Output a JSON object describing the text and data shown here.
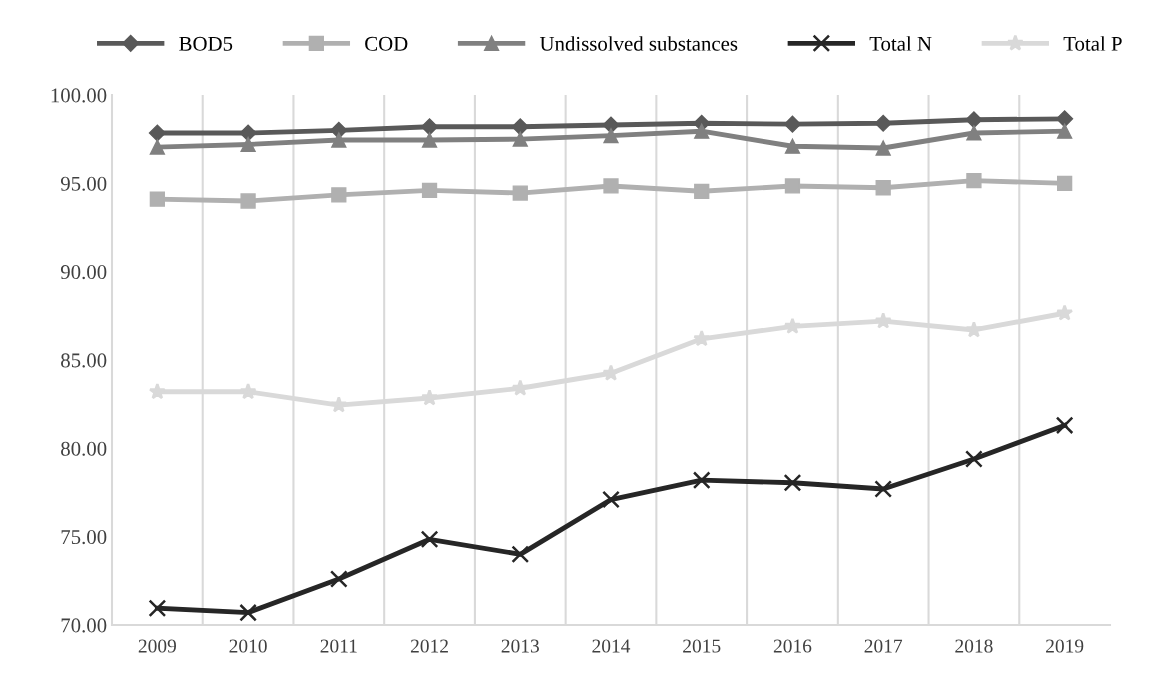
{
  "chart_data": {
    "type": "line",
    "categories": [
      "2009",
      "2010",
      "2011",
      "2012",
      "2013",
      "2014",
      "2015",
      "2016",
      "2017",
      "2018",
      "2019"
    ],
    "series": [
      {
        "name": "BOD5",
        "color": "#595959",
        "marker": "diamond",
        "values": [
          97.85,
          97.85,
          98.0,
          98.2,
          98.2,
          98.3,
          98.4,
          98.35,
          98.4,
          98.6,
          98.65
        ]
      },
      {
        "name": "COD",
        "color": "#b0b0b0",
        "marker": "square",
        "values": [
          94.1,
          94.0,
          94.35,
          94.6,
          94.45,
          94.85,
          94.55,
          94.85,
          94.75,
          95.15,
          95.0
        ]
      },
      {
        "name": "Undissolved substances",
        "color": "#808080",
        "marker": "triangle",
        "values": [
          97.05,
          97.2,
          97.45,
          97.45,
          97.5,
          97.7,
          97.95,
          97.1,
          97.0,
          97.85,
          97.95
        ]
      },
      {
        "name": "Total N",
        "color": "#262626",
        "marker": "cross",
        "values": [
          70.95,
          70.7,
          72.6,
          74.85,
          74.0,
          77.1,
          78.2,
          78.05,
          77.7,
          79.4,
          81.3
        ]
      },
      {
        "name": "Total P",
        "color": "#d9d9d9",
        "marker": "star",
        "values": [
          83.2,
          83.2,
          82.45,
          82.85,
          83.4,
          84.25,
          86.2,
          86.9,
          87.2,
          86.7,
          87.65
        ]
      }
    ],
    "ylim": [
      70,
      100
    ],
    "yticks": [
      {
        "value": 70,
        "label": "70.00"
      },
      {
        "value": 75,
        "label": "75.00"
      },
      {
        "value": 80,
        "label": "80.00"
      },
      {
        "value": 85,
        "label": "85.00"
      },
      {
        "value": 90,
        "label": "90.00"
      },
      {
        "value": 95,
        "label": "95.00"
      },
      {
        "value": 100,
        "label": "100.00"
      }
    ],
    "grid": "x",
    "legend": "top",
    "line_style": "solid"
  }
}
